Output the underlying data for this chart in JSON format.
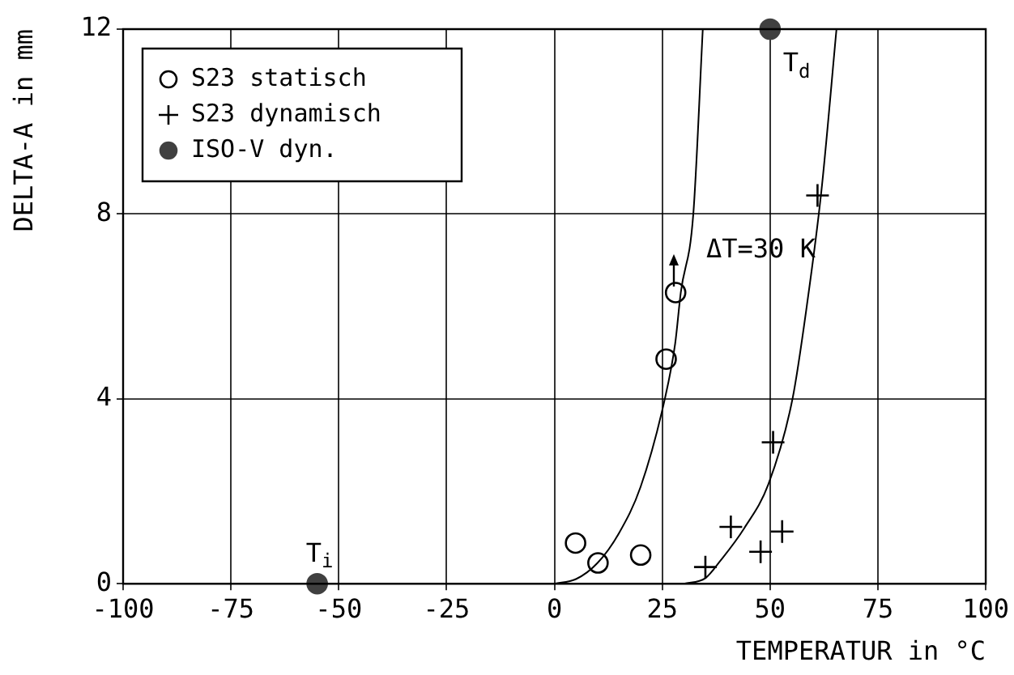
{
  "chart_data": {
    "type": "scatter",
    "xlabel": "TEMPERATUR in °C",
    "ylabel": "DELTA-A in mm",
    "xlim": [
      -100,
      100
    ],
    "xticks": [
      -100,
      -75,
      -50,
      -25,
      0,
      25,
      50,
      75,
      100
    ],
    "ylim": [
      0,
      12
    ],
    "yticks": [
      0,
      4,
      8,
      12
    ],
    "grid": true,
    "legend": "top left",
    "series": [
      {
        "name": "S23 statisch",
        "marker": "circle",
        "color": "#000000",
        "x": [
          4.9,
          10.1,
          20,
          25.9,
          28.1
        ],
        "values": [
          0.88,
          0.45,
          0.62,
          4.86,
          6.3
        ]
      },
      {
        "name": "S23 dynamisch",
        "marker": "cross",
        "color": "#000000",
        "x": [
          35,
          40.9,
          47.8,
          52.8,
          50.7,
          61
        ],
        "values": [
          0.36,
          1.23,
          0.69,
          1.13,
          3.06,
          8.4
        ]
      },
      {
        "name": "ISO-V dyn.",
        "marker": "circle",
        "color": "#404040",
        "x": [
          -55,
          50
        ],
        "values": [
          0,
          12
        ]
      },
      {
        "type": "line",
        "marker": "none",
        "color": "#000000",
        "x": [
          0,
          5,
          10,
          15,
          20,
          25.6,
          28,
          29.3,
          32.2,
          34.4
        ],
        "values": [
          0,
          0.1,
          0.45,
          1.1,
          2.1,
          4,
          5.2,
          6.3,
          8,
          12
        ]
      },
      {
        "type": "line",
        "marker": "none",
        "color": "#000000",
        "x": [
          30,
          35,
          38.5,
          44,
          49.6,
          55.2,
          58.5,
          61.9,
          65.4
        ],
        "values": [
          0,
          0.12,
          0.5,
          1.2,
          2.15,
          4,
          6,
          8.5,
          12
        ]
      }
    ],
    "annotations": [
      {
        "text": "T$_{i}$",
        "x": -55,
        "y": 0
      },
      {
        "text": "T$_{d}$",
        "x": 50,
        "y": 12
      },
      {
        "text": "ΔT=30 K",
        "x": 32.2,
        "y": 7.2
      }
    ]
  }
}
